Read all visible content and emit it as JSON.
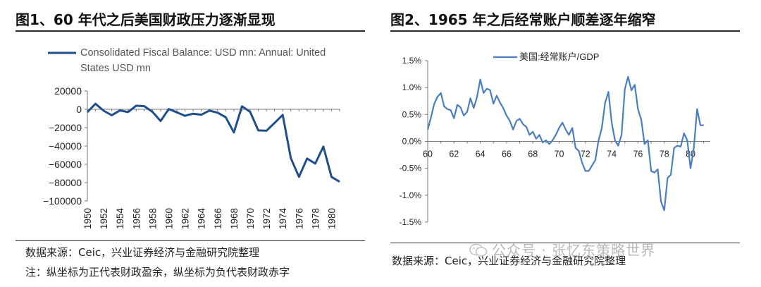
{
  "panels": {
    "left": {
      "title": "图1、60 年代之后美国财政压力逐渐显现",
      "source": "数据来源：Ceic，兴业证券经济与金融研究院整理",
      "note": "注：纵坐标为正代表财政盈余，纵坐标为负代表财政赤字"
    },
    "right": {
      "title": "图2、1965 年之后经常账户顺差逐年缩窄",
      "source": "数据来源：Ceic，兴业证券经济与金融研究院整理"
    }
  },
  "watermark": "公众号 · 张忆东策略世界",
  "chart_data": [
    {
      "type": "line",
      "title": "",
      "legend": [
        "Consolidated Fiscal Balance: USD mn: Annual: United",
        "States USD mn"
      ],
      "series": [
        {
          "name": "Consolidated Fiscal Balance: USD mn: Annual: United States USD mn",
          "color": "#1f4e8c",
          "x": [
            1950,
            1951,
            1952,
            1953,
            1954,
            1955,
            1956,
            1957,
            1958,
            1959,
            1960,
            1961,
            1962,
            1963,
            1964,
            1965,
            1966,
            1967,
            1968,
            1969,
            1970,
            1971,
            1972,
            1973,
            1974,
            1975,
            1976,
            1977,
            1978,
            1979,
            1980,
            1981
          ],
          "values": [
            -3000,
            6000,
            -1500,
            -6500,
            -1200,
            -3000,
            3900,
            3400,
            -2800,
            -12800,
            300,
            -3300,
            -7100,
            -4800,
            -5900,
            -1400,
            -3700,
            -8600,
            -25200,
            3200,
            -2800,
            -23000,
            -23400,
            -14900,
            -6100,
            -53200,
            -73700,
            -53700,
            -59200,
            -40700,
            -73800,
            -79000
          ]
        }
      ],
      "xticks": [
        "1950",
        "1952",
        "1954",
        "1956",
        "1958",
        "1960",
        "1962",
        "1964",
        "1966",
        "1968",
        "1970",
        "1972",
        "1974",
        "1976",
        "1978",
        "1980"
      ],
      "yticks": [
        "20000",
        "0",
        "−20000",
        "−40000",
        "−60000",
        "−80000",
        "−100000"
      ],
      "ylim": [
        -100000,
        20000
      ],
      "grid": false
    },
    {
      "type": "line",
      "title": "",
      "legend": [
        "美国:经常账户/GDP"
      ],
      "series": [
        {
          "name": "美国:经常账户/GDP",
          "color": "#4a7ec0",
          "x": [
            60,
            60.25,
            60.5,
            60.75,
            61,
            61.25,
            61.5,
            61.75,
            62,
            62.25,
            62.5,
            62.75,
            63,
            63.25,
            63.5,
            63.75,
            64,
            64.25,
            64.5,
            64.75,
            65,
            65.25,
            65.5,
            65.75,
            66,
            66.25,
            66.5,
            66.75,
            67,
            67.25,
            67.5,
            67.75,
            68,
            68.25,
            68.5,
            68.75,
            69,
            69.25,
            69.5,
            69.75,
            70,
            70.25,
            70.5,
            70.75,
            71,
            71.25,
            71.5,
            71.75,
            72,
            72.25,
            72.5,
            72.75,
            73,
            73.25,
            73.5,
            73.75,
            74,
            74.25,
            74.5,
            74.75,
            75,
            75.25,
            75.5,
            75.75,
            76,
            76.25,
            76.5,
            76.75,
            77,
            77.25,
            77.5,
            77.75,
            78,
            78.25,
            78.5,
            78.75,
            79,
            79.25,
            79.5,
            79.75,
            80,
            80.25,
            80.5,
            80.75,
            81
          ],
          "values": [
            0.22,
            0.45,
            0.7,
            0.83,
            0.9,
            0.65,
            0.6,
            0.58,
            0.43,
            0.68,
            0.63,
            0.48,
            0.55,
            0.8,
            0.62,
            0.82,
            1.15,
            0.9,
            0.98,
            0.95,
            0.7,
            0.85,
            0.72,
            0.62,
            0.48,
            0.38,
            0.22,
            0.38,
            0.42,
            0.32,
            0.27,
            0.12,
            0.18,
            0.05,
            0.12,
            -0.02,
            0.02,
            -0.05,
            0.02,
            0.12,
            0.25,
            0.35,
            0.22,
            0.12,
            0.25,
            -0.12,
            -0.18,
            -0.4,
            -0.55,
            -0.55,
            -0.45,
            -0.35,
            0.02,
            0.25,
            0.72,
            0.92,
            0.35,
            0.02,
            -0.08,
            0.12,
            0.98,
            1.2,
            0.95,
            1.05,
            0.6,
            0.4,
            -0.05,
            0.02,
            -0.55,
            -0.58,
            -0.52,
            -1.12,
            -1.28,
            -0.68,
            -0.62,
            -0.12,
            -0.08,
            -0.1,
            0.15,
            0.02,
            -0.5,
            -0.12,
            0.6,
            0.3,
            0.3
          ],
          "line_end": 80.75
        }
      ],
      "xticks": [
        "60",
        "62",
        "64",
        "66",
        "68",
        "70",
        "72",
        "74",
        "76",
        "78",
        "80"
      ],
      "yticks": [
        "1.5%",
        "1.0%",
        "0.5%",
        "0.0%",
        "-0.5%",
        "-1.0%",
        "-1.5%"
      ],
      "ylim": [
        -1.5,
        1.5
      ],
      "grid": false
    }
  ]
}
